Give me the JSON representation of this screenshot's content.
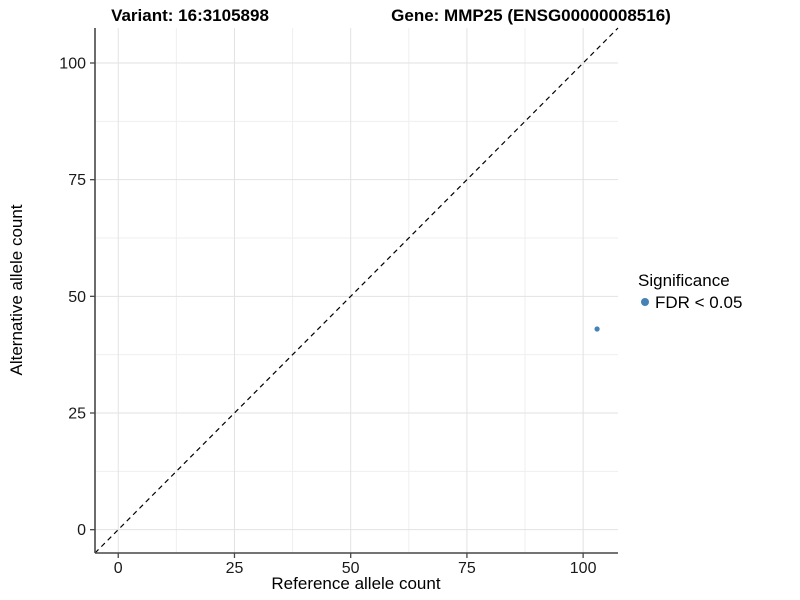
{
  "chart_data": {
    "type": "scatter",
    "title_left": "Variant: 16:3105898",
    "title_right": "Gene: MMP25 (ENSG00000008516)",
    "xlabel": "Reference allele count",
    "ylabel": "Alternative allele count",
    "xlim": [
      -5,
      107.5
    ],
    "ylim": [
      -5,
      107.5
    ],
    "x_ticks": [
      0,
      25,
      50,
      75,
      100
    ],
    "y_ticks": [
      0,
      25,
      50,
      75,
      100
    ],
    "x_minor_ticks": [
      12.5,
      37.5,
      62.5,
      87.5
    ],
    "y_minor_ticks": [
      12.5,
      37.5,
      62.5,
      87.5
    ],
    "grid": "major+minor",
    "legend_position": "right",
    "legend": {
      "title": "Significance",
      "items": [
        {
          "label": "FDR < 0.05",
          "color": "#4682B4"
        }
      ]
    },
    "points": [
      {
        "x": 103,
        "y": 43,
        "series": "FDR < 0.05",
        "color": "#4682B4"
      }
    ],
    "reference_line": {
      "type": "identity_y_equals_x",
      "style": "dashed",
      "color": "#000000"
    }
  },
  "colors": {
    "point": "#4682B4",
    "grid_major": "#e2e2e2",
    "grid_minor": "#efefef",
    "axis": "#474747",
    "diagonal": "#000000",
    "background": "#ffffff"
  }
}
